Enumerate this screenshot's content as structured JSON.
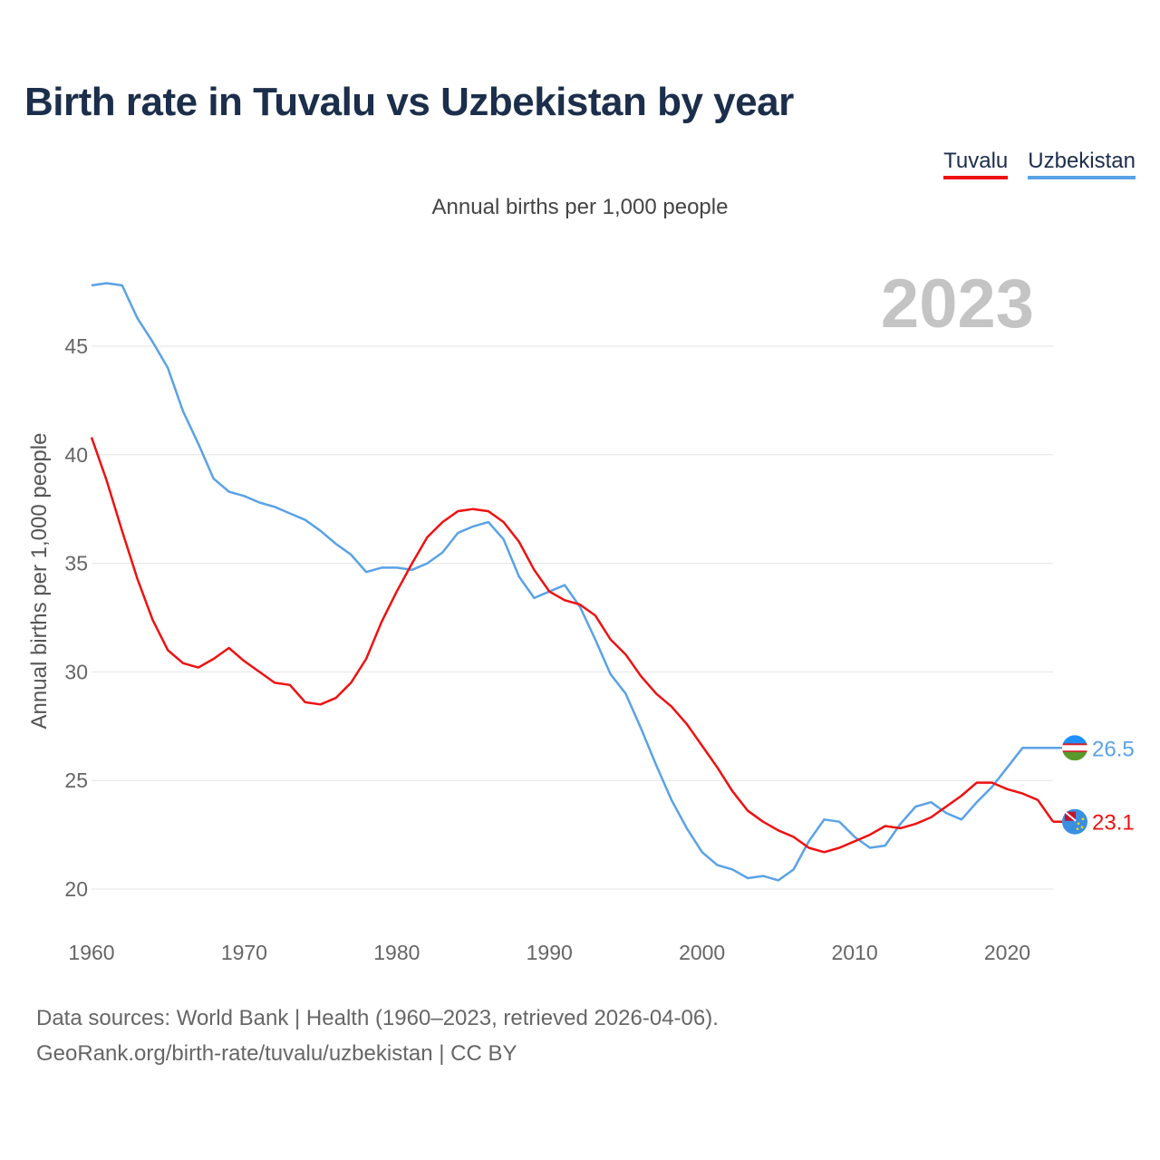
{
  "header": {
    "title": "Birth rate in Tuvalu vs Uzbekistan by year",
    "subtitle": "Annual births per 1,000 people"
  },
  "legend": [
    {
      "name": "Tuvalu",
      "color": "#ee1111"
    },
    {
      "name": "Uzbekistan",
      "color": "#5aa2e6"
    }
  ],
  "footer": {
    "line1": "Data sources: World Bank | Health (1960–2023, retrieved 2026-04-06).",
    "line2": "GeoRank.org/birth-rate/tuvalu/uzbekistan | CC BY"
  },
  "chart_data": {
    "type": "line",
    "title": "Birth rate in Tuvalu vs Uzbekistan by year",
    "xlabel": "",
    "ylabel": "Annual births per 1,000 people",
    "year_label": "2023",
    "xlim": [
      1960,
      2023
    ],
    "ylim": [
      18.8,
      49
    ],
    "xticks": [
      1960,
      1970,
      1980,
      1990,
      2000,
      2010,
      2020
    ],
    "yticks": [
      20,
      25,
      30,
      35,
      40,
      45
    ],
    "x": [
      1960,
      1961,
      1962,
      1963,
      1964,
      1965,
      1966,
      1967,
      1968,
      1969,
      1970,
      1971,
      1972,
      1973,
      1974,
      1975,
      1976,
      1977,
      1978,
      1979,
      1980,
      1981,
      1982,
      1983,
      1984,
      1985,
      1986,
      1987,
      1988,
      1989,
      1990,
      1991,
      1992,
      1993,
      1994,
      1995,
      1996,
      1997,
      1998,
      1999,
      2000,
      2001,
      2002,
      2003,
      2004,
      2005,
      2006,
      2007,
      2008,
      2009,
      2010,
      2011,
      2012,
      2013,
      2014,
      2015,
      2016,
      2017,
      2018,
      2019,
      2020,
      2021,
      2022,
      2023
    ],
    "series": [
      {
        "name": "Tuvalu",
        "color": "#ee1111",
        "end_label": "23.1",
        "values": [
          40.8,
          38.8,
          36.5,
          34.3,
          32.4,
          31.0,
          30.4,
          30.2,
          30.6,
          31.1,
          30.5,
          30.0,
          29.5,
          29.4,
          28.6,
          28.5,
          28.8,
          29.5,
          30.6,
          32.3,
          33.7,
          35.0,
          36.2,
          36.9,
          37.4,
          37.5,
          37.4,
          36.9,
          36.0,
          34.7,
          33.7,
          33.3,
          33.1,
          32.6,
          31.5,
          30.8,
          29.8,
          29.0,
          28.4,
          27.6,
          26.6,
          25.6,
          24.5,
          23.6,
          23.1,
          22.7,
          22.4,
          21.9,
          21.7,
          21.9,
          22.2,
          22.5,
          22.9,
          22.8,
          23.0,
          23.3,
          23.8,
          24.3,
          24.9,
          24.9,
          24.6,
          24.4,
          24.1,
          23.1
        ]
      },
      {
        "name": "Uzbekistan",
        "color": "#5aa2e6",
        "end_label": "26.5",
        "values": [
          47.8,
          47.9,
          47.8,
          46.3,
          45.2,
          44.0,
          42.0,
          40.5,
          38.9,
          38.3,
          38.1,
          37.8,
          37.6,
          37.3,
          37.0,
          36.5,
          35.9,
          35.4,
          34.6,
          34.8,
          34.8,
          34.7,
          35.0,
          35.5,
          36.4,
          36.7,
          36.9,
          36.1,
          34.4,
          33.4,
          33.7,
          34.0,
          33.0,
          31.5,
          29.9,
          29.0,
          27.4,
          25.7,
          24.1,
          22.8,
          21.7,
          21.1,
          20.9,
          20.5,
          20.6,
          20.4,
          20.9,
          22.2,
          23.2,
          23.1,
          22.4,
          21.9,
          22.0,
          23.0,
          23.8,
          24.0,
          23.5,
          23.2,
          24.0,
          24.7,
          25.6,
          26.5,
          26.5,
          26.5
        ]
      }
    ]
  }
}
